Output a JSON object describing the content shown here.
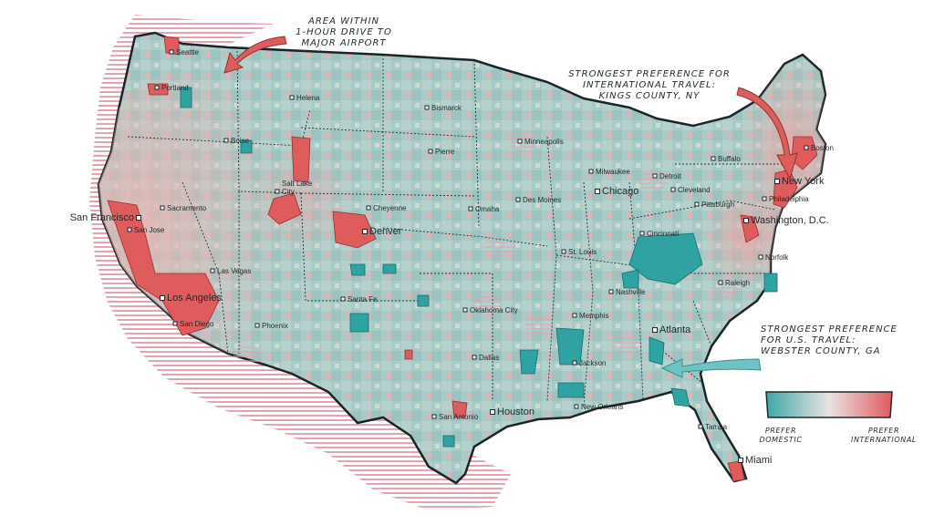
{
  "annotations": {
    "airport_area": "AREA WITHIN\n1-HOUR DRIVE TO\nMAJOR AIRPORT",
    "international": "STRONGEST PREFERENCE FOR\nINTERNATIONAL TRAVEL:\nKINGS COUNTY, NY",
    "domestic": "STRONGEST PREFERENCE\nFOR U.S. TRAVEL:\nWEBSTER COUNTY, GA"
  },
  "legend": {
    "left_label": "PREFER\nDOMESTIC",
    "right_label": "PREFER\nINTERNATIONAL",
    "domestic_color": "#3fa7a6",
    "neutral_color": "#e9e3e3",
    "international_color": "#e05a5d"
  },
  "colors": {
    "land_base": "#a9cbc7",
    "state_border": "#263133",
    "domestic_cluster": "#2fa2a2",
    "international_cluster": "#de5c5c",
    "hatch": "#e6a3b1",
    "city_marker": "#ffffff"
  },
  "cities": [
    {
      "name": "Seattle",
      "major": false
    },
    {
      "name": "Portland",
      "major": false
    },
    {
      "name": "Helena",
      "major": false
    },
    {
      "name": "Bismarck",
      "major": false
    },
    {
      "name": "Boise",
      "major": false
    },
    {
      "name": "Minneapolis",
      "major": false
    },
    {
      "name": "Pierre",
      "major": false
    },
    {
      "name": "Salt Lake\nCity",
      "major": false
    },
    {
      "name": "Cheyenne",
      "major": false
    },
    {
      "name": "Milwaukee",
      "major": false
    },
    {
      "name": "Detroit",
      "major": false
    },
    {
      "name": "Buffalo",
      "major": false
    },
    {
      "name": "Boston",
      "major": false
    },
    {
      "name": "New York",
      "major": true
    },
    {
      "name": "Chicago",
      "major": true
    },
    {
      "name": "Cleveland",
      "major": false
    },
    {
      "name": "Pittsburgh",
      "major": false
    },
    {
      "name": "Philadelphia",
      "major": false
    },
    {
      "name": "Sacramento",
      "major": false
    },
    {
      "name": "San Francisco",
      "major": true
    },
    {
      "name": "San Jose",
      "major": false
    },
    {
      "name": "Omaha",
      "major": false
    },
    {
      "name": "Des Moines",
      "major": false
    },
    {
      "name": "Denver",
      "major": true
    },
    {
      "name": "Washington, D.C.",
      "major": true
    },
    {
      "name": "Cincinnati",
      "major": false
    },
    {
      "name": "St. Louis",
      "major": false
    },
    {
      "name": "Las Vegas",
      "major": false
    },
    {
      "name": "Norfolk",
      "major": false
    },
    {
      "name": "Los Angeles",
      "major": true
    },
    {
      "name": "Santa Fe",
      "major": false
    },
    {
      "name": "Nashville",
      "major": false
    },
    {
      "name": "Raleigh",
      "major": false
    },
    {
      "name": "Oklahoma City",
      "major": false
    },
    {
      "name": "Memphis",
      "major": false
    },
    {
      "name": "San Diego",
      "major": false
    },
    {
      "name": "Phoenix",
      "major": false
    },
    {
      "name": "Atlanta",
      "major": true
    },
    {
      "name": "Dallas",
      "major": false
    },
    {
      "name": "Jackson",
      "major": false
    },
    {
      "name": "New Orleans",
      "major": false
    },
    {
      "name": "San Antonio",
      "major": false
    },
    {
      "name": "Houston",
      "major": true
    },
    {
      "name": "Tampa",
      "major": false
    },
    {
      "name": "Miami",
      "major": true
    }
  ]
}
